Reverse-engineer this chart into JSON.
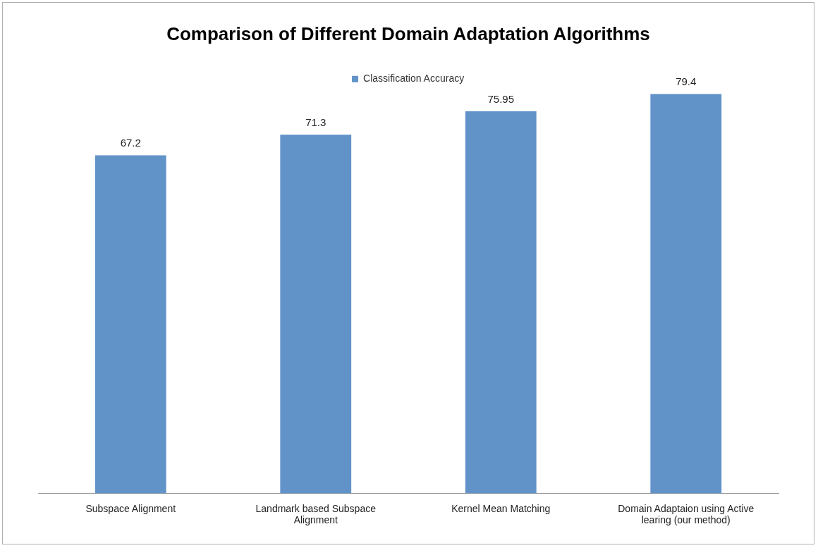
{
  "chart_data": {
    "type": "bar",
    "title": "Comparison of Different Domain Adaptation Algorithms",
    "categories": [
      "Subspace Alignment",
      "Landmark based Subspace Alignment",
      "Kernel Mean Matching",
      "Domain Adaptaion using Active learing (our method)"
    ],
    "series": [
      {
        "name": "Classification Accuracy",
        "color": "#6193c9",
        "values": [
          67.2,
          71.3,
          75.95,
          79.4
        ]
      }
    ],
    "tick_labels": "x",
    "data_labels": true,
    "legend": "top",
    "grid": false
  }
}
